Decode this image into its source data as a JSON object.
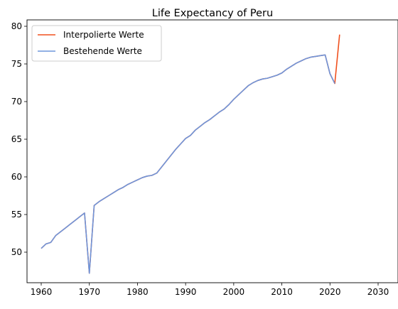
{
  "chart_data": {
    "type": "line",
    "title": "Life Expectancy of Peru",
    "xlabel": "",
    "ylabel": "",
    "xlim": [
      1960,
      2030
    ],
    "ylim": [
      45,
      80
    ],
    "xticks": [
      1960,
      1970,
      1980,
      1990,
      2000,
      2010,
      2020,
      2030
    ],
    "yticks": [
      50,
      55,
      60,
      65,
      70,
      75,
      80
    ],
    "grid": false,
    "legend_position": "top-left",
    "series": [
      {
        "name": "Interpolierte Werte",
        "color": "#f0501e",
        "x": [
          1960,
          1961,
          1962,
          1963,
          1964,
          1965,
          1966,
          1967,
          1968,
          1969,
          1970,
          1971,
          1972,
          1973,
          1974,
          1975,
          1976,
          1977,
          1978,
          1979,
          1980,
          1981,
          1982,
          1983,
          1984,
          1985,
          1986,
          1987,
          1988,
          1989,
          1990,
          1991,
          1992,
          1993,
          1994,
          1995,
          1996,
          1997,
          1998,
          1999,
          2000,
          2001,
          2002,
          2003,
          2004,
          2005,
          2006,
          2007,
          2008,
          2009,
          2010,
          2011,
          2012,
          2013,
          2014,
          2015,
          2016,
          2017,
          2018,
          2019,
          2020,
          2021,
          2022
        ],
        "y": [
          50.5,
          51.1,
          51.3,
          52.2,
          52.7,
          53.2,
          53.7,
          54.2,
          54.7,
          55.2,
          47.2,
          56.2,
          56.7,
          57.1,
          57.5,
          57.9,
          58.3,
          58.6,
          59.0,
          59.3,
          59.6,
          59.9,
          60.1,
          60.2,
          60.5,
          61.3,
          62.1,
          62.9,
          63.7,
          64.4,
          65.1,
          65.5,
          66.2,
          66.7,
          67.2,
          67.6,
          68.1,
          68.6,
          69.0,
          69.6,
          70.3,
          70.9,
          71.5,
          72.1,
          72.5,
          72.8,
          73.0,
          73.1,
          73.3,
          73.5,
          73.8,
          74.3,
          74.7,
          75.1,
          75.4,
          75.7,
          75.9,
          76.0,
          76.1,
          76.2,
          73.7,
          72.4,
          78.9
        ]
      },
      {
        "name": "Bestehende Werte",
        "color": "#6e96dc",
        "x": [
          1960,
          1961,
          1962,
          1963,
          1964,
          1965,
          1966,
          1967,
          1968,
          1969,
          1970,
          1971,
          1972,
          1973,
          1974,
          1975,
          1976,
          1977,
          1978,
          1979,
          1980,
          1981,
          1982,
          1983,
          1984,
          1985,
          1986,
          1987,
          1988,
          1989,
          1990,
          1991,
          1992,
          1993,
          1994,
          1995,
          1996,
          1997,
          1998,
          1999,
          2000,
          2001,
          2002,
          2003,
          2004,
          2005,
          2006,
          2007,
          2008,
          2009,
          2010,
          2011,
          2012,
          2013,
          2014,
          2015,
          2016,
          2017,
          2018,
          2019,
          2020,
          2021
        ],
        "y": [
          50.5,
          51.1,
          51.3,
          52.2,
          52.7,
          53.2,
          53.7,
          54.2,
          54.7,
          55.2,
          47.2,
          56.2,
          56.7,
          57.1,
          57.5,
          57.9,
          58.3,
          58.6,
          59.0,
          59.3,
          59.6,
          59.9,
          60.1,
          60.2,
          60.5,
          61.3,
          62.1,
          62.9,
          63.7,
          64.4,
          65.1,
          65.5,
          66.2,
          66.7,
          67.2,
          67.6,
          68.1,
          68.6,
          69.0,
          69.6,
          70.3,
          70.9,
          71.5,
          72.1,
          72.5,
          72.8,
          73.0,
          73.1,
          73.3,
          73.5,
          73.8,
          74.3,
          74.7,
          75.1,
          75.4,
          75.7,
          75.9,
          76.0,
          76.1,
          76.2,
          73.7,
          72.4
        ]
      }
    ]
  }
}
